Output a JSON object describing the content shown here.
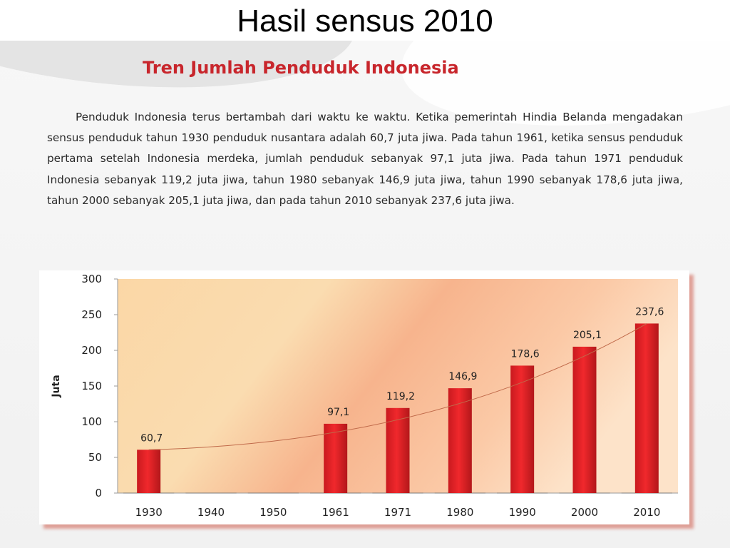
{
  "slide": {
    "title": "Hasil sensus 2010"
  },
  "section": {
    "heading": "Tren Jumlah Penduduk Indonesia",
    "paragraph": "Penduduk Indonesia terus bertambah dari waktu ke waktu. Ketika pemerintah Hindia Belanda mengadakan sensus penduduk tahun 1930 penduduk nusantara adalah 60,7 juta jiwa. Pada tahun 1961, ketika sensus penduduk pertama setelah Indonesia merdeka, jumlah penduduk sebanyak 97,1 juta jiwa. Pada tahun 1971 penduduk Indonesia sebanyak 119,2 juta jiwa, tahun 1980 sebanyak 146,9 juta jiwa, tahun 1990 sebanyak 178,6 juta jiwa, tahun 2000 sebanyak 205,1 juta jiwa, dan pada tahun 2010 sebanyak 237,6 juta jiwa."
  },
  "colors": {
    "bar": "#e8262a",
    "bar_dark": "#b01418",
    "heading": "#c8262c",
    "trend": "#c06a4a"
  },
  "chart_data": {
    "type": "bar",
    "title": "",
    "xlabel": "",
    "ylabel": "Juta",
    "ylim": [
      0,
      300
    ],
    "yticks": [
      "0",
      "50",
      "100",
      "150",
      "200",
      "250",
      "300"
    ],
    "categories": [
      "1930",
      "1940",
      "1950",
      "1961",
      "1971",
      "1980",
      "1990",
      "2000",
      "2010"
    ],
    "values": [
      60.7,
      null,
      null,
      97.1,
      119.2,
      146.9,
      178.6,
      205.1,
      237.6
    ],
    "data_labels": [
      "60,7",
      "",
      "",
      "97,1",
      "119,2",
      "146,9",
      "178,6",
      "205,1",
      "237,6"
    ],
    "trendline": true,
    "grid": false,
    "legend": "none"
  }
}
